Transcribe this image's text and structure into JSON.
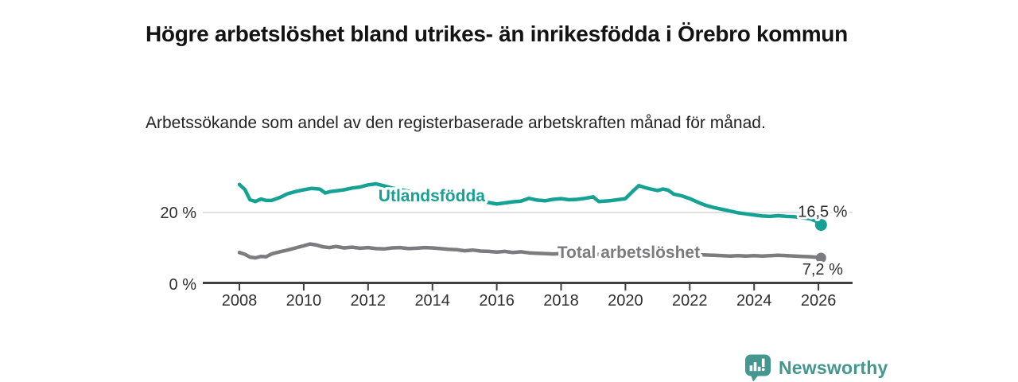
{
  "title": "Högre arbetslöshet bland utrikes- än inrikesfödda i Örebro kommun",
  "subtitle": "Arbetssökande som andel av den registerbaserade arbetskraften månad för månad.",
  "branding": {
    "logo_text": "Newsworthy",
    "logo_color": "#44978f",
    "logo_icon": "speech-bubble-bar-chart-icon"
  },
  "colors": {
    "series_foreign": "#15a294",
    "series_total": "#7c7c80",
    "axis": "#3f3f3f",
    "gridline": "#cdcdcd",
    "tick_text": "#2f2f2f",
    "value_text": "#2e2e2e"
  },
  "chart_data": {
    "type": "line",
    "title": "Högre arbetslöshet bland utrikes- än inrikesfödda i Örebro kommun",
    "subtitle": "Arbetssökande som andel av den registerbaserade arbetskraften månad för månad.",
    "unit": "%",
    "grid": "horizontal-20-only",
    "legend_position": "inline-on-line",
    "x_axis": {
      "tick_years": [
        2008,
        2010,
        2012,
        2014,
        2016,
        2018,
        2020,
        2022,
        2024,
        2026
      ],
      "range": [
        2008,
        2026.2
      ]
    },
    "y_axis": {
      "ticks": [
        {
          "value": 0,
          "label": "0 %",
          "grid": false
        },
        {
          "value": 20,
          "label": "20 %",
          "grid": true
        }
      ],
      "range": [
        0,
        31
      ]
    },
    "series": [
      {
        "id": "utlandsfodda",
        "name": "Utlandsfödda",
        "color": "#15a294",
        "end_label": "16,5 %",
        "end_value": 16.5,
        "name_pos": [
          2013.98,
          24.7
        ],
        "end_label_offset": [
          2,
          -10
        ],
        "dot_radius": 7.5,
        "points": [
          [
            2008.0,
            27.9
          ],
          [
            2008.17,
            26.5
          ],
          [
            2008.33,
            23.6
          ],
          [
            2008.5,
            23.1
          ],
          [
            2008.67,
            23.8
          ],
          [
            2008.83,
            23.4
          ],
          [
            2009.0,
            23.4
          ],
          [
            2009.25,
            24.2
          ],
          [
            2009.5,
            25.3
          ],
          [
            2009.75,
            25.9
          ],
          [
            2010.0,
            26.4
          ],
          [
            2010.25,
            26.8
          ],
          [
            2010.5,
            26.6
          ],
          [
            2010.67,
            25.5
          ],
          [
            2010.83,
            25.9
          ],
          [
            2011.0,
            26.1
          ],
          [
            2011.25,
            26.4
          ],
          [
            2011.5,
            26.9
          ],
          [
            2011.75,
            27.2
          ],
          [
            2012.0,
            27.8
          ],
          [
            2012.25,
            28.1
          ],
          [
            2012.5,
            27.5
          ],
          [
            2012.75,
            26.9
          ],
          [
            2013.0,
            26.5
          ],
          [
            2013.25,
            26.0
          ],
          [
            2013.5,
            25.6
          ],
          [
            2013.75,
            25.2
          ],
          [
            2014.0,
            24.9
          ],
          [
            2014.25,
            24.6
          ],
          [
            2014.5,
            24.3
          ],
          [
            2014.75,
            24.0
          ],
          [
            2015.0,
            23.7
          ],
          [
            2015.25,
            23.5
          ],
          [
            2015.5,
            23.3
          ],
          [
            2015.75,
            22.8
          ],
          [
            2016.0,
            22.4
          ],
          [
            2016.25,
            22.7
          ],
          [
            2016.5,
            23.0
          ],
          [
            2016.75,
            23.2
          ],
          [
            2017.0,
            24.0
          ],
          [
            2017.25,
            23.5
          ],
          [
            2017.5,
            23.3
          ],
          [
            2017.75,
            23.7
          ],
          [
            2018.0,
            23.9
          ],
          [
            2018.25,
            23.6
          ],
          [
            2018.5,
            23.7
          ],
          [
            2018.75,
            24.0
          ],
          [
            2019.0,
            24.4
          ],
          [
            2019.17,
            23.1
          ],
          [
            2019.5,
            23.3
          ],
          [
            2019.75,
            23.6
          ],
          [
            2020.0,
            23.9
          ],
          [
            2020.25,
            26.2
          ],
          [
            2020.42,
            27.6
          ],
          [
            2020.58,
            27.1
          ],
          [
            2020.75,
            26.7
          ],
          [
            2021.0,
            26.2
          ],
          [
            2021.17,
            26.6
          ],
          [
            2021.33,
            26.3
          ],
          [
            2021.5,
            25.2
          ],
          [
            2021.75,
            24.7
          ],
          [
            2022.0,
            23.9
          ],
          [
            2022.25,
            22.9
          ],
          [
            2022.5,
            22.0
          ],
          [
            2022.75,
            21.4
          ],
          [
            2023.0,
            20.9
          ],
          [
            2023.25,
            20.4
          ],
          [
            2023.5,
            19.9
          ],
          [
            2023.75,
            19.6
          ],
          [
            2024.0,
            19.3
          ],
          [
            2024.25,
            19.0
          ],
          [
            2024.5,
            18.9
          ],
          [
            2024.75,
            19.1
          ],
          [
            2025.0,
            18.9
          ],
          [
            2025.25,
            18.8
          ],
          [
            2025.5,
            18.5
          ],
          [
            2025.75,
            18.2
          ],
          [
            2026.0,
            17.3
          ],
          [
            2026.08,
            16.5
          ]
        ]
      },
      {
        "id": "total",
        "name": "Total arbetslöshet",
        "color": "#7c7c80",
        "end_label": "7,2 %",
        "end_value": 7.2,
        "name_pos": [
          2020.1,
          8.8
        ],
        "end_label_offset": [
          2,
          21
        ],
        "dot_radius": 6.5,
        "points": [
          [
            2008.0,
            8.7
          ],
          [
            2008.17,
            8.2
          ],
          [
            2008.33,
            7.4
          ],
          [
            2008.5,
            7.2
          ],
          [
            2008.67,
            7.6
          ],
          [
            2008.83,
            7.5
          ],
          [
            2009.0,
            8.3
          ],
          [
            2009.25,
            8.9
          ],
          [
            2009.5,
            9.4
          ],
          [
            2009.75,
            10.0
          ],
          [
            2010.0,
            10.6
          ],
          [
            2010.2,
            11.1
          ],
          [
            2010.4,
            10.8
          ],
          [
            2010.6,
            10.3
          ],
          [
            2010.8,
            10.1
          ],
          [
            2011.0,
            10.4
          ],
          [
            2011.25,
            10.0
          ],
          [
            2011.5,
            10.2
          ],
          [
            2011.75,
            9.9
          ],
          [
            2012.0,
            10.1
          ],
          [
            2012.25,
            9.8
          ],
          [
            2012.5,
            9.7
          ],
          [
            2012.75,
            10.0
          ],
          [
            2013.0,
            10.1
          ],
          [
            2013.25,
            9.8
          ],
          [
            2013.5,
            9.9
          ],
          [
            2013.75,
            10.1
          ],
          [
            2014.0,
            10.0
          ],
          [
            2014.25,
            9.8
          ],
          [
            2014.5,
            9.6
          ],
          [
            2014.75,
            9.5
          ],
          [
            2015.0,
            9.2
          ],
          [
            2015.25,
            9.4
          ],
          [
            2015.5,
            9.1
          ],
          [
            2015.75,
            9.0
          ],
          [
            2016.0,
            8.8
          ],
          [
            2016.25,
            9.0
          ],
          [
            2016.5,
            8.7
          ],
          [
            2016.75,
            8.9
          ],
          [
            2017.0,
            8.6
          ],
          [
            2017.25,
            8.5
          ],
          [
            2017.5,
            8.4
          ],
          [
            2017.75,
            8.3
          ],
          [
            2018.0,
            8.4
          ],
          [
            2018.25,
            8.3
          ],
          [
            2018.5,
            8.2
          ],
          [
            2018.75,
            8.3
          ],
          [
            2019.0,
            8.2
          ],
          [
            2019.25,
            8.1
          ],
          [
            2019.5,
            8.2
          ],
          [
            2019.75,
            8.3
          ],
          [
            2020.0,
            8.4
          ],
          [
            2020.25,
            9.2
          ],
          [
            2020.5,
            9.5
          ],
          [
            2020.75,
            9.2
          ],
          [
            2021.0,
            9.0
          ],
          [
            2021.25,
            8.8
          ],
          [
            2021.5,
            8.6
          ],
          [
            2021.75,
            8.4
          ],
          [
            2022.0,
            8.2
          ],
          [
            2022.25,
            8.1
          ],
          [
            2022.5,
            8.0
          ],
          [
            2022.75,
            7.9
          ],
          [
            2023.0,
            7.8
          ],
          [
            2023.25,
            7.7
          ],
          [
            2023.5,
            7.8
          ],
          [
            2023.75,
            7.7
          ],
          [
            2024.0,
            7.8
          ],
          [
            2024.25,
            7.7
          ],
          [
            2024.5,
            7.8
          ],
          [
            2024.75,
            7.9
          ],
          [
            2025.0,
            7.8
          ],
          [
            2025.25,
            7.7
          ],
          [
            2025.5,
            7.6
          ],
          [
            2025.75,
            7.5
          ],
          [
            2026.0,
            7.3
          ],
          [
            2026.08,
            7.2
          ]
        ]
      }
    ]
  }
}
